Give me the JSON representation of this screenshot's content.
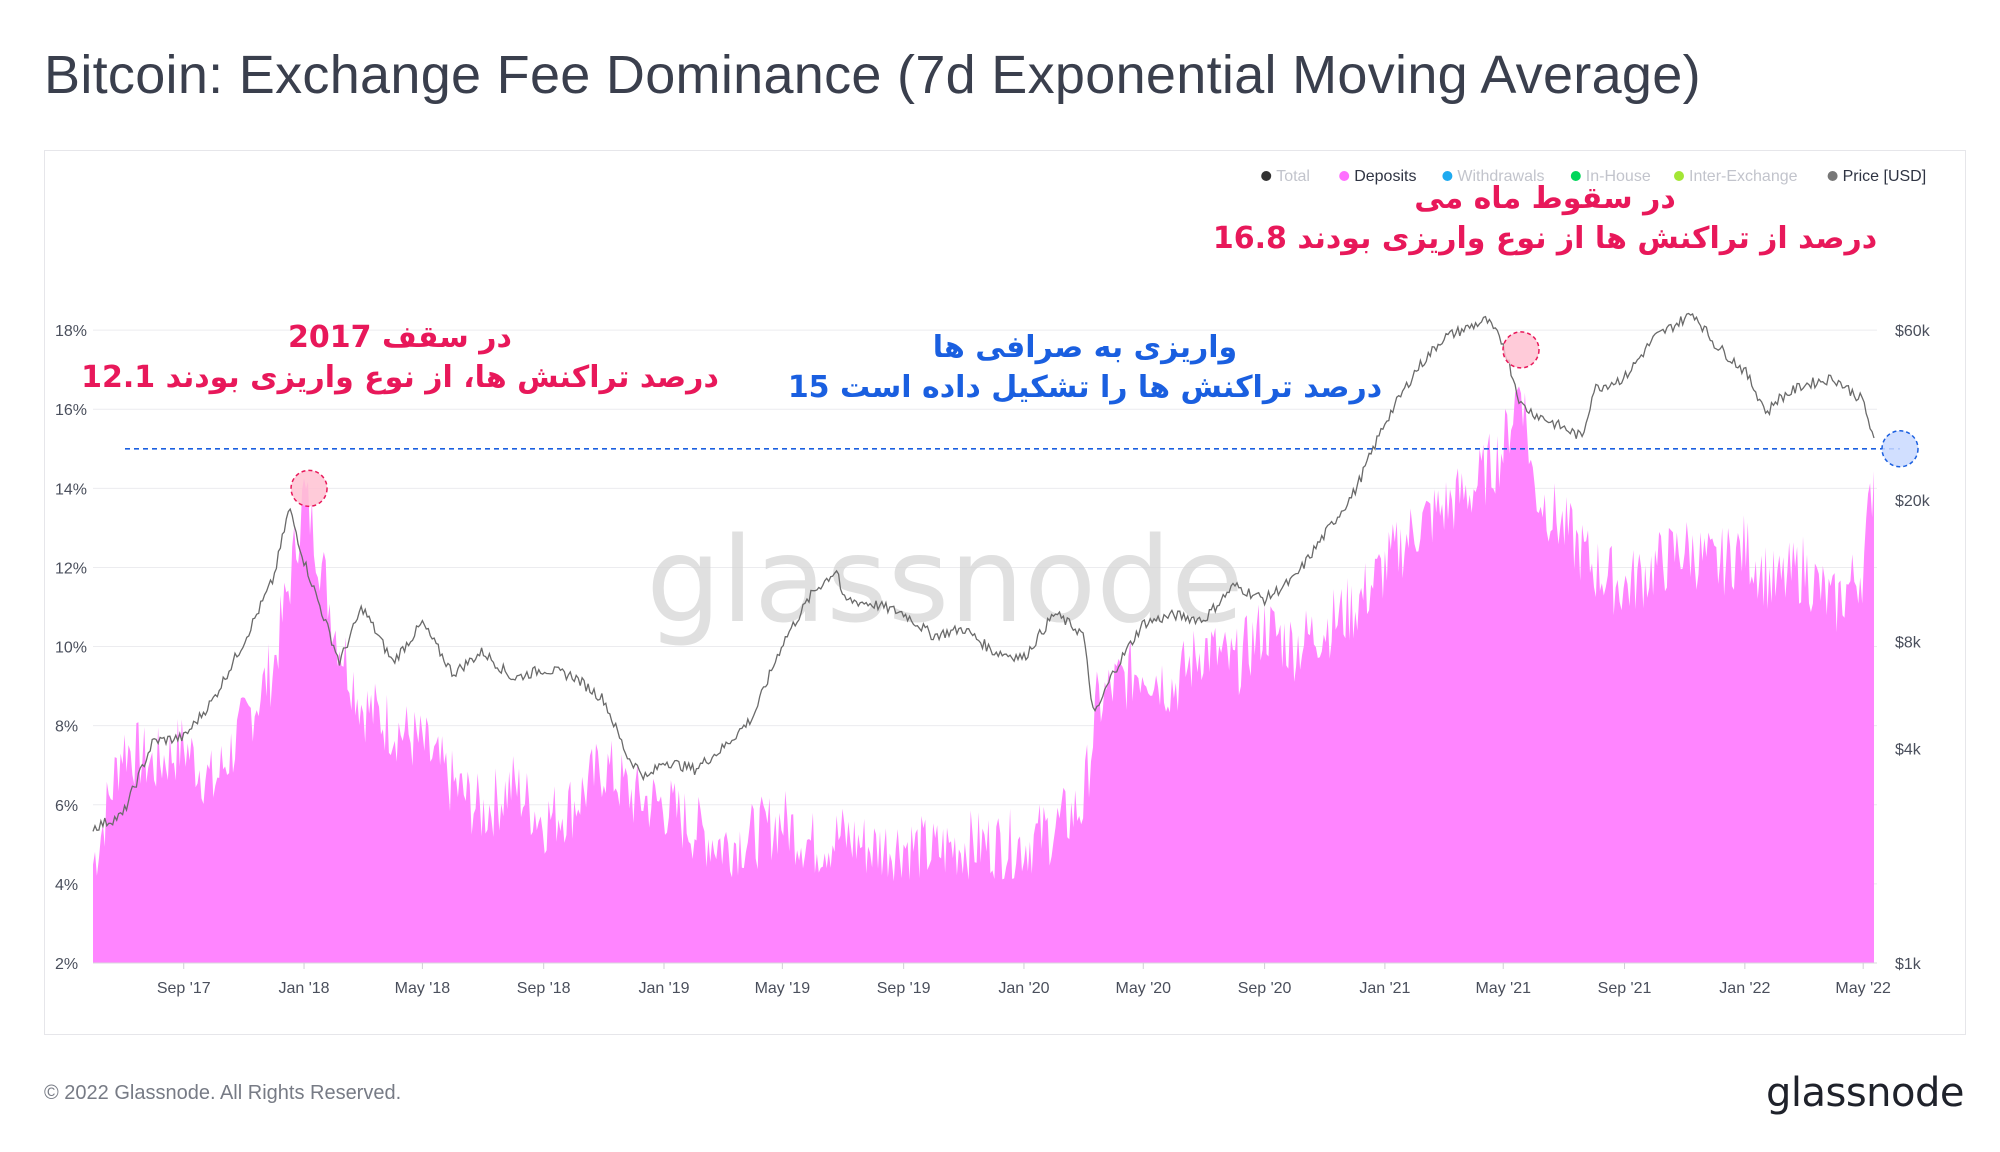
{
  "title": "Bitcoin: Exchange Fee Dominance (7d Exponential Moving Average)",
  "footer": {
    "copyright": "© 2022 Glassnode. All Rights Reserved.",
    "logo": "glassnode"
  },
  "watermark": "glassnode",
  "colors": {
    "deposits": "#ff85ff",
    "price": "#707070",
    "accent_pink": "#e8185a",
    "accent_blue": "#1a5fe0",
    "legend_total": "#333333",
    "legend_withdrawals": "#1eaaf0",
    "legend_inhouse": "#00d65a",
    "legend_interexchange": "#a3e635"
  },
  "legend": [
    {
      "label": "Total",
      "color": "#333333",
      "active": false
    },
    {
      "label": "Deposits",
      "color": "#ff70ff",
      "active": true
    },
    {
      "label": "Withdrawals",
      "color": "#1eaaf0",
      "active": false
    },
    {
      "label": "In-House",
      "color": "#00d65a",
      "active": false
    },
    {
      "label": "Inter-Exchange",
      "color": "#a3e635",
      "active": false
    },
    {
      "label": "Price [USD]",
      "color": "#777777",
      "active": true
    }
  ],
  "annotations": {
    "left": {
      "line1": "در سقف 2017",
      "line2": "12.1 درصد تراکنش ها، از نوع واریزی بودند"
    },
    "middle": {
      "line1": "واریزی به صرافی ها",
      "line2": "15 درصد تراکنش ها را تشکیل داده است"
    },
    "right": {
      "line1": "در سقوط ماه می",
      "line2": "16.8 درصد از تراکنش ها از نوع واریزی بودند"
    }
  },
  "chart_data": {
    "type": "area",
    "title": "Bitcoin: Exchange Fee Dominance (7d Exponential Moving Average)",
    "x_ticks": [
      "Sep '17",
      "Jan '18",
      "May '18",
      "Sep '18",
      "Jan '19",
      "May '19",
      "Sep '19",
      "Jan '20",
      "May '20",
      "Sep '20",
      "Jan '21",
      "May '21",
      "Sep '21",
      "Jan '22",
      "May '22"
    ],
    "x_range": [
      "2017-06-01",
      "2022-05-15"
    ],
    "y_left": {
      "ticks": [
        "2%",
        "4%",
        "6%",
        "8%",
        "10%",
        "12%",
        "14%",
        "16%",
        "18%"
      ],
      "range": [
        2,
        20
      ]
    },
    "y_right": {
      "ticks": [
        "$1k",
        "$4k",
        "$8k",
        "$20k",
        "$60k"
      ],
      "scale": "log",
      "range": [
        1000,
        100000
      ]
    },
    "reference_line": 15,
    "series": [
      {
        "name": "Deposits",
        "axis": "left",
        "x": [
          "2017-06-01",
          "2017-07-01",
          "2017-08-01",
          "2017-09-01",
          "2017-10-01",
          "2017-11-01",
          "2017-12-01",
          "2017-12-20",
          "2018-01-01",
          "2018-01-15",
          "2018-02-01",
          "2018-03-01",
          "2018-04-01",
          "2018-05-01",
          "2018-06-01",
          "2018-07-01",
          "2018-08-01",
          "2018-09-01",
          "2018-10-01",
          "2018-11-01",
          "2018-12-01",
          "2019-01-01",
          "2019-02-01",
          "2019-03-01",
          "2019-04-01",
          "2019-05-01",
          "2019-06-01",
          "2019-07-01",
          "2019-08-01",
          "2019-09-01",
          "2019-10-01",
          "2019-11-01",
          "2019-12-01",
          "2020-01-01",
          "2020-02-01",
          "2020-03-01",
          "2020-03-15",
          "2020-04-01",
          "2020-05-01",
          "2020-06-01",
          "2020-07-01",
          "2020-08-01",
          "2020-09-01",
          "2020-10-01",
          "2020-11-01",
          "2020-12-01",
          "2021-01-01",
          "2021-02-01",
          "2021-03-01",
          "2021-04-01",
          "2021-05-01",
          "2021-05-19",
          "2021-06-01",
          "2021-07-01",
          "2021-08-01",
          "2021-09-01",
          "2021-10-01",
          "2021-11-01",
          "2021-12-01",
          "2022-01-01",
          "2022-02-01",
          "2022-03-01",
          "2022-04-01",
          "2022-05-01",
          "2022-05-12"
        ],
        "values": [
          4.5,
          7.5,
          7.0,
          7.5,
          6.5,
          8.0,
          9.5,
          12.0,
          13.9,
          12.5,
          10.5,
          8.5,
          8.0,
          7.5,
          6.5,
          5.8,
          6.5,
          5.6,
          6.0,
          7.0,
          6.2,
          6.0,
          5.4,
          5.0,
          5.2,
          5.6,
          5.0,
          5.2,
          4.9,
          5.0,
          4.8,
          5.0,
          5.0,
          5.0,
          5.4,
          6.0,
          8.5,
          9.0,
          9.5,
          9.0,
          10.0,
          9.5,
          10.5,
          10.0,
          10.5,
          11.0,
          12.0,
          13.0,
          13.5,
          14.0,
          15.0,
          16.8,
          14.0,
          13.0,
          12.0,
          11.5,
          12.0,
          12.5,
          12.0,
          12.5,
          11.5,
          12.0,
          11.0,
          12.0,
          14.5
        ]
      },
      {
        "name": "Price [USD]",
        "axis": "right",
        "x": [
          "2017-06-01",
          "2017-07-01",
          "2017-08-01",
          "2017-09-01",
          "2017-10-01",
          "2017-11-01",
          "2017-12-01",
          "2017-12-17",
          "2018-01-01",
          "2018-02-06",
          "2018-03-01",
          "2018-04-01",
          "2018-05-01",
          "2018-06-01",
          "2018-07-01",
          "2018-08-01",
          "2018-09-01",
          "2018-10-01",
          "2018-11-01",
          "2018-11-25",
          "2018-12-15",
          "2019-01-01",
          "2019-02-01",
          "2019-03-01",
          "2019-04-01",
          "2019-05-01",
          "2019-06-01",
          "2019-06-26",
          "2019-07-01",
          "2019-08-01",
          "2019-09-01",
          "2019-10-01",
          "2019-11-01",
          "2019-12-01",
          "2020-01-01",
          "2020-02-01",
          "2020-03-01",
          "2020-03-12",
          "2020-04-01",
          "2020-05-01",
          "2020-06-01",
          "2020-07-01",
          "2020-08-01",
          "2020-09-01",
          "2020-10-01",
          "2020-11-01",
          "2020-12-01",
          "2021-01-01",
          "2021-02-01",
          "2021-03-01",
          "2021-04-14",
          "2021-05-01",
          "2021-05-19",
          "2021-06-01",
          "2021-07-20",
          "2021-08-01",
          "2021-09-01",
          "2021-10-01",
          "2021-11-10",
          "2021-12-01",
          "2022-01-01",
          "2022-01-24",
          "2022-02-01",
          "2022-03-01",
          "2022-04-01",
          "2022-05-01",
          "2022-05-12"
        ],
        "values": [
          2400,
          2600,
          4200,
          4300,
          5500,
          8000,
          12000,
          19000,
          13500,
          7000,
          10000,
          7000,
          9000,
          6500,
          7500,
          6300,
          6700,
          6400,
          5500,
          3800,
          3300,
          3700,
          3500,
          4000,
          4900,
          7900,
          11000,
          12800,
          10500,
          10200,
          9600,
          8300,
          8700,
          7500,
          7200,
          9600,
          8400,
          4900,
          6600,
          9000,
          9500,
          9200,
          11500,
          10500,
          12000,
          16000,
          21000,
          33000,
          46000,
          57000,
          64000,
          55000,
          37000,
          35000,
          30000,
          41000,
          44000,
          57000,
          67000,
          55000,
          46000,
          35000,
          38000,
          42000,
          44000,
          38000,
          29000
        ]
      }
    ]
  }
}
